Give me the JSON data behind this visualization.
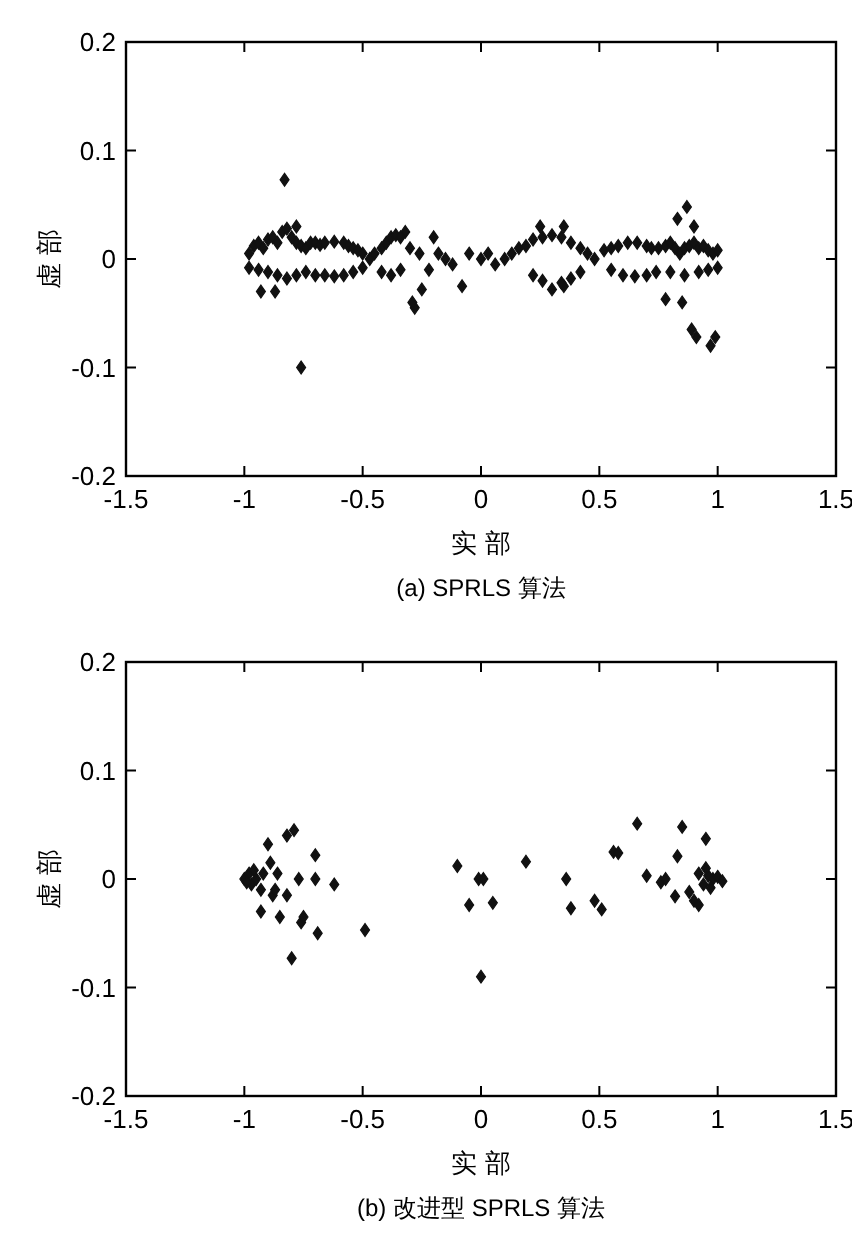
{
  "chart_data": [
    {
      "type": "scatter",
      "title": "(a) SPRLS 算法",
      "xlabel": "实 部",
      "ylabel": "虚 部",
      "xlim": [
        -1.5,
        1.5
      ],
      "ylim": [
        -0.2,
        0.2
      ],
      "xticks": [
        -1.5,
        -1,
        -0.5,
        0,
        0.5,
        1,
        1.5
      ],
      "yticks": [
        -0.2,
        -0.1,
        0,
        0.1,
        0.2
      ],
      "marker": "diamond",
      "series": [
        {
          "color": "#111111",
          "x": [
            -0.83,
            -0.76,
            0.87,
            0.83,
            0.9,
            0.78,
            0.85,
            0.89,
            0.91,
            0.97,
            0.99,
            -0.28,
            -0.29,
            -0.25,
            -0.22,
            -0.08,
            -0.78,
            -0.93,
            -0.87,
            -0.32,
            0.25,
            0.35,
            0.3,
            0.35,
            -0.2,
            -0.98,
            -0.96,
            -0.94,
            -0.92,
            -0.9,
            -0.88,
            -0.86,
            -0.84,
            -0.82,
            -0.8,
            -0.78,
            -0.76,
            -0.74,
            -0.72,
            -0.7,
            -0.68,
            -0.66,
            -0.62,
            -0.58,
            -0.56,
            -0.54,
            -0.52,
            -0.5,
            -0.47,
            -0.45,
            -0.42,
            -0.4,
            -0.38,
            -0.36,
            -0.34,
            -0.3,
            -0.26,
            -0.18,
            -0.15,
            -0.12,
            -0.05,
            0,
            0.03,
            0.06,
            0.1,
            0.13,
            0.16,
            0.19,
            0.22,
            0.26,
            0.3,
            0.34,
            0.38,
            0.42,
            0.45,
            0.48,
            0.52,
            0.55,
            0.58,
            0.62,
            0.66,
            0.7,
            0.72,
            0.75,
            0.78,
            0.8,
            0.82,
            0.84,
            0.86,
            0.88,
            0.9,
            0.92,
            0.94,
            0.96,
            0.98,
            1.0,
            -0.98,
            -0.94,
            -0.9,
            -0.86,
            -0.82,
            -0.78,
            -0.74,
            -0.7,
            -0.66,
            -0.62,
            -0.58,
            -0.54,
            -0.5,
            -0.42,
            -0.38,
            -0.34,
            0.22,
            0.26,
            0.34,
            0.38,
            0.42,
            0.55,
            0.6,
            0.65,
            0.7,
            0.74,
            0.8,
            0.86,
            0.92,
            0.96,
            1.0
          ],
          "values": [
            0.073,
            -0.1,
            0.048,
            0.037,
            0.03,
            -0.037,
            -0.04,
            -0.065,
            -0.072,
            -0.08,
            -0.072,
            -0.045,
            -0.04,
            -0.028,
            -0.01,
            -0.025,
            0.03,
            -0.03,
            -0.03,
            0.025,
            0.03,
            0.03,
            -0.028,
            -0.025,
            0.02,
            0.005,
            0.012,
            0.015,
            0.01,
            0.018,
            0.02,
            0.015,
            0.025,
            0.028,
            0.02,
            0.015,
            0.012,
            0.01,
            0.015,
            0.015,
            0.013,
            0.015,
            0.016,
            0.015,
            0.012,
            0.01,
            0.008,
            0.005,
            0,
            0.005,
            0.01,
            0.015,
            0.02,
            0.022,
            0.02,
            0.01,
            0.005,
            0.005,
            0,
            -0.005,
            0.005,
            0,
            0.005,
            -0.005,
            0,
            0.005,
            0.01,
            0.012,
            0.018,
            0.02,
            0.022,
            0.02,
            0.015,
            0.01,
            0.005,
            0,
            0.008,
            0.01,
            0.012,
            0.015,
            0.015,
            0.012,
            0.01,
            0.01,
            0.012,
            0.015,
            0.01,
            0.005,
            0.01,
            0.012,
            0.015,
            0.01,
            0.012,
            0.008,
            0.005,
            0.008,
            -0.008,
            -0.01,
            -0.012,
            -0.015,
            -0.018,
            -0.015,
            -0.012,
            -0.015,
            -0.015,
            -0.016,
            -0.015,
            -0.012,
            -0.008,
            -0.012,
            -0.015,
            -0.01,
            -0.015,
            -0.02,
            -0.022,
            -0.018,
            -0.012,
            -0.01,
            -0.015,
            -0.016,
            -0.015,
            -0.012,
            -0.012,
            -0.015,
            -0.012,
            -0.01,
            -0.008
          ]
        }
      ]
    },
    {
      "type": "scatter",
      "title": "(b) 改进型 SPRLS 算法",
      "xlabel": "实 部",
      "ylabel": "虚 部",
      "xlim": [
        -1.5,
        1.5
      ],
      "ylim": [
        -0.2,
        0.2
      ],
      "xticks": [
        -1.5,
        -1,
        -0.5,
        0,
        0.5,
        1,
        1.5
      ],
      "yticks": [
        -0.2,
        -0.1,
        0,
        0.1,
        0.2
      ],
      "marker": "diamond",
      "series": [
        {
          "color": "#111111",
          "x": [
            -1,
            -0.98,
            -0.97,
            -0.95,
            -0.99,
            -0.96,
            -0.93,
            -0.92,
            -0.9,
            -0.89,
            -0.88,
            -0.86,
            -0.93,
            -0.85,
            -0.82,
            -0.82,
            -0.79,
            -0.77,
            -0.76,
            -0.75,
            -0.7,
            -0.7,
            -0.69,
            -0.8,
            -0.62,
            -0.49,
            -0.87,
            -0.1,
            -0.01,
            0.01,
            -0.05,
            0.05,
            0,
            0.19,
            0.36,
            0.38,
            0.48,
            0.51,
            0.56,
            0.58,
            0.66,
            0.7,
            0.76,
            0.78,
            0.83,
            0.85,
            0.82,
            0.9,
            0.92,
            0.95,
            0.92,
            0.94,
            0.96,
            0.98,
            1.0,
            1.02,
            0.97,
            0.95,
            0.88
          ],
          "values": [
            0,
            0.005,
            -0.005,
            0,
            -0.003,
            0.008,
            -0.01,
            0.005,
            0.032,
            0.015,
            -0.015,
            0.005,
            -0.03,
            -0.035,
            -0.015,
            0.04,
            0.045,
            0,
            -0.04,
            -0.035,
            0.022,
            0,
            -0.05,
            -0.073,
            -0.005,
            -0.047,
            -0.01,
            0.012,
            0,
            0,
            -0.024,
            -0.022,
            -0.09,
            0.016,
            0,
            -0.027,
            -0.02,
            -0.028,
            0.025,
            0.024,
            0.051,
            0.003,
            -0.003,
            0,
            0.021,
            0.048,
            -0.016,
            -0.02,
            -0.024,
            0.037,
            0.005,
            -0.005,
            0.003,
            0,
            0.002,
            -0.002,
            -0.008,
            0.01,
            -0.012
          ]
        }
      ]
    }
  ]
}
